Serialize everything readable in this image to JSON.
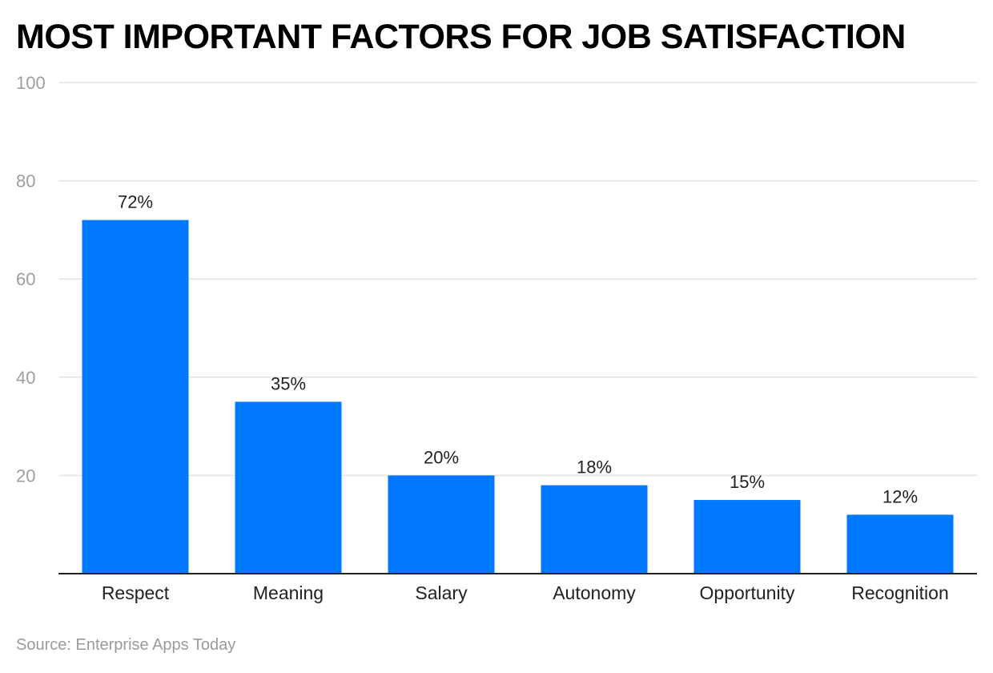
{
  "colors": {
    "bar": "#0078FF",
    "grid": "#e3e3e3",
    "axis": "#222222"
  },
  "chart_data": {
    "type": "bar",
    "title": "MOST IMPORTANT FACTORS FOR JOB SATISFACTION",
    "categories": [
      "Respect",
      "Meaning",
      "Salary",
      "Autonomy",
      "Opportunity",
      "Recognition"
    ],
    "values": [
      72,
      35,
      20,
      18,
      15,
      12
    ],
    "data_labels": [
      "72%",
      "35%",
      "20%",
      "18%",
      "15%",
      "12%"
    ],
    "yticks": [
      20,
      40,
      60,
      80,
      100
    ],
    "ylim": [
      0,
      100
    ],
    "xlabel": "",
    "ylabel": "",
    "grid": true,
    "legend": "none"
  },
  "source": "Source: Enterprise Apps Today"
}
